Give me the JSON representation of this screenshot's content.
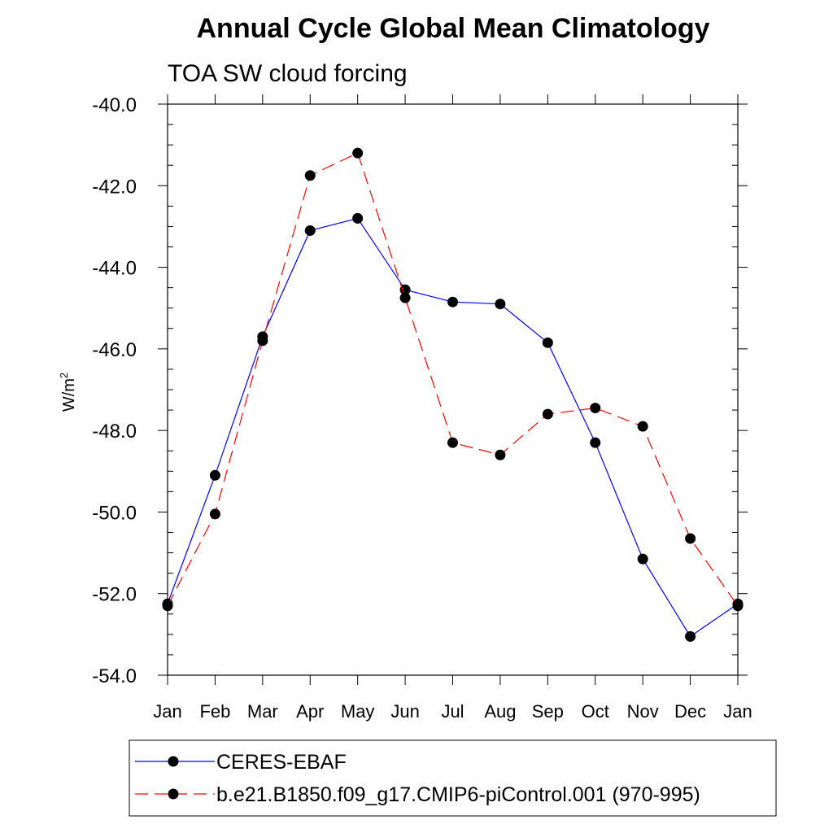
{
  "chart_data": {
    "type": "line",
    "title": "Annual Cycle Global Mean Climatology",
    "subtitle": "TOA SW cloud forcing",
    "xlabel": "",
    "ylabel": "W/m",
    "ylabel_superscript": "2",
    "categories": [
      "Jan",
      "Feb",
      "Mar",
      "Apr",
      "May",
      "Jun",
      "Jul",
      "Aug",
      "Sep",
      "Oct",
      "Nov",
      "Dec",
      "Jan"
    ],
    "ylim": [
      -54.0,
      -40.0
    ],
    "yticks": [
      -54.0,
      -52.0,
      -50.0,
      -48.0,
      -46.0,
      -44.0,
      -42.0,
      -40.0
    ],
    "ytick_labels": [
      "-54.0",
      "-52.0",
      "-50.0",
      "-48.0",
      "-46.0",
      "-44.0",
      "-42.0",
      "-40.0"
    ],
    "grid": false,
    "legend_position": "bottom",
    "series": [
      {
        "name": "CERES-EBAF",
        "color": "#0000ff",
        "dashed": false,
        "values": [
          -52.25,
          -49.1,
          -45.7,
          -43.1,
          -42.8,
          -44.55,
          -44.85,
          -44.9,
          -45.85,
          -48.3,
          -51.15,
          -53.05,
          -52.25
        ]
      },
      {
        "name": "b.e21.B1850.f09_g17.CMIP6-piControl.001 (970-995)",
        "color": "#ff0000",
        "dashed": true,
        "values": [
          -52.3,
          -50.05,
          -45.8,
          -41.75,
          -41.2,
          -44.75,
          -48.3,
          -48.6,
          -47.6,
          -47.45,
          -47.9,
          -50.65,
          -52.3
        ]
      }
    ]
  }
}
